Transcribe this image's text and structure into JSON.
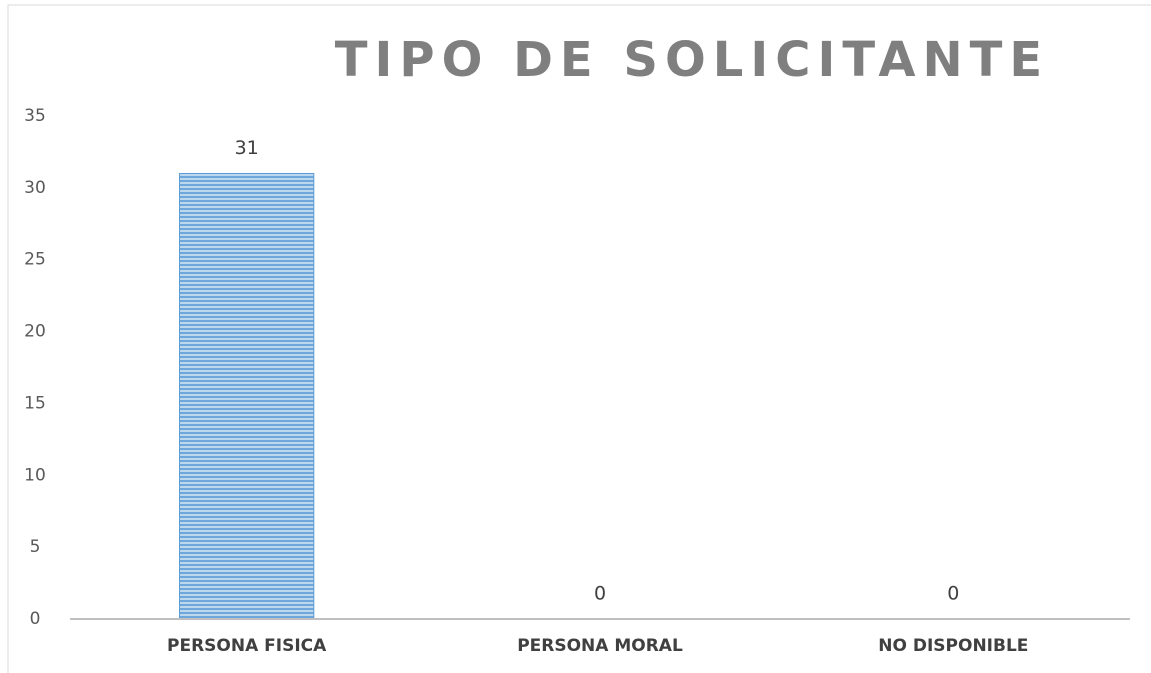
{
  "chart_data": {
    "type": "bar",
    "title": "TIPO DE SOLICITANTE",
    "categories": [
      "PERSONA FISICA",
      "PERSONA MORAL",
      "NO DISPONIBLE"
    ],
    "values": [
      31,
      0,
      0
    ],
    "color": "#5b9bd5",
    "ylim": [
      0,
      35
    ],
    "yticks": [
      0,
      5,
      10,
      15,
      20,
      25,
      30,
      35
    ],
    "grid": false
  }
}
